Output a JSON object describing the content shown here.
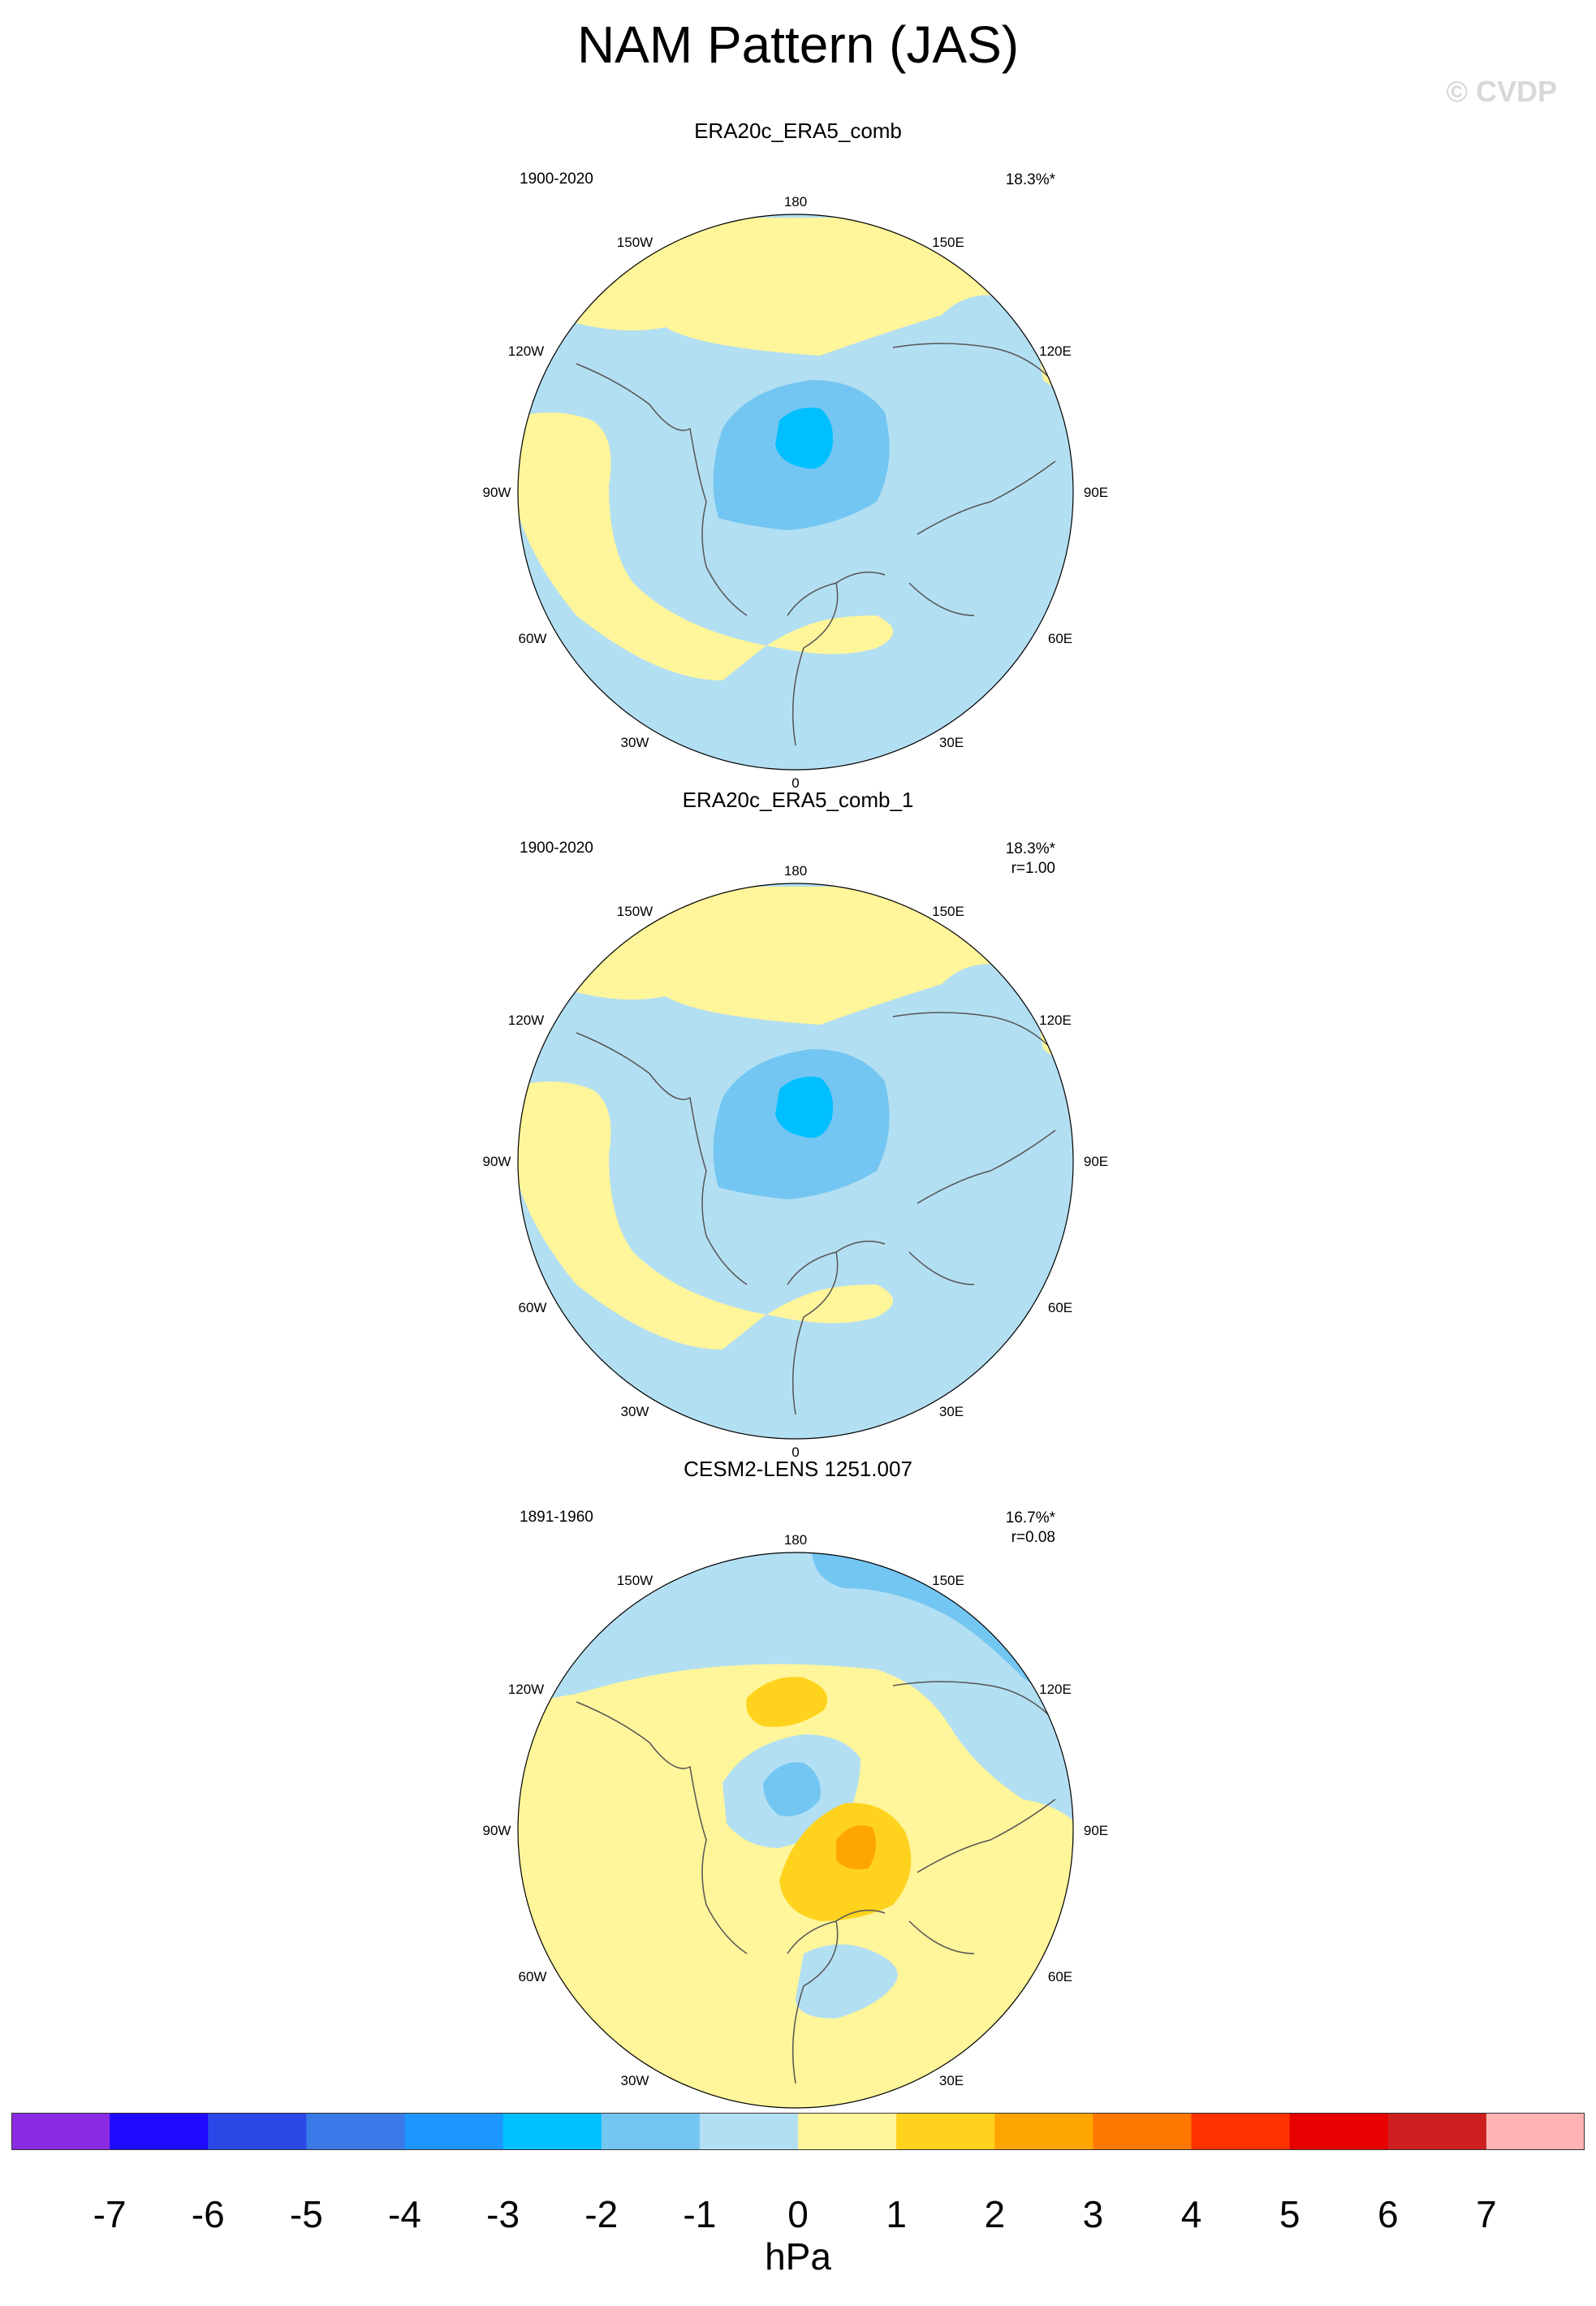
{
  "title": "NAM Pattern (JAS)",
  "watermark": "© CVDP",
  "colors": {
    "land_outline": "#555555",
    "levels": [
      "#8a2be2",
      "#1e0aff",
      "#2a48e6",
      "#3a7ae8",
      "#1e96ff",
      "#00bfff",
      "#73c6f2",
      "#b3dff2",
      "#fff59a",
      "#ffd21e",
      "#ffa500",
      "#ff7800",
      "#ff3200",
      "#e60000",
      "#cd1f1f",
      "#ffb3b3"
    ]
  },
  "lon_labels": [
    "180",
    "150E",
    "120E",
    "90E",
    "60E",
    "30E",
    "0",
    "30W",
    "60W",
    "90W",
    "120W",
    "150W"
  ],
  "panels": [
    {
      "title": "ERA20c_ERA5_comb",
      "period": "1900-2020",
      "pct": "18.3%*",
      "r": ""
    },
    {
      "title": "ERA20c_ERA5_comb_1",
      "period": "1900-2020",
      "pct": "18.3%*",
      "r": "r=1.00"
    },
    {
      "title": "CESM2-LENS 1251.007",
      "period": "1891-1960",
      "pct": "16.7%*",
      "r": "r=0.08"
    }
  ],
  "colorbar": {
    "labels": [
      "-7",
      "-6",
      "-5",
      "-4",
      "-3",
      "-2",
      "-1",
      "0",
      "1",
      "2",
      "3",
      "4",
      "5",
      "6",
      "7"
    ],
    "units": "hPa"
  }
}
